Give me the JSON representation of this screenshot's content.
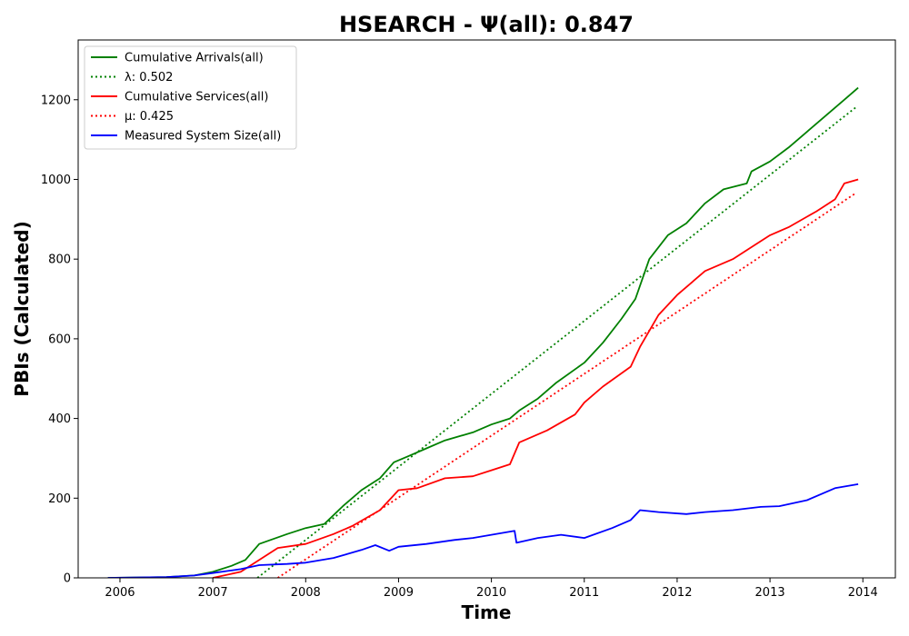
{
  "chart_data": {
    "type": "line",
    "title": "HSEARCH -  Ψ(all): 0.847",
    "xlabel": "Time",
    "ylabel": "PBIs (Calculated)",
    "xlim": [
      2005.55,
      2014.35
    ],
    "ylim": [
      0,
      1350
    ],
    "x_ticks": [
      2006,
      2007,
      2008,
      2009,
      2010,
      2011,
      2012,
      2013,
      2014
    ],
    "y_ticks": [
      0,
      200,
      400,
      600,
      800,
      1000,
      1200
    ],
    "grid": false,
    "legend_position": "upper-left",
    "series": [
      {
        "name": "Cumulative Arrivals(all)",
        "label": "Cumulative Arrivals(all)",
        "color": "#008000",
        "style": "solid",
        "x": [
          2005.87,
          2006.5,
          2006.8,
          2007.0,
          2007.2,
          2007.35,
          2007.5,
          2007.8,
          2008.0,
          2008.2,
          2008.4,
          2008.6,
          2008.8,
          2008.95,
          2009.1,
          2009.3,
          2009.5,
          2009.8,
          2010.0,
          2010.2,
          2010.3,
          2010.5,
          2010.7,
          2011.0,
          2011.2,
          2011.4,
          2011.55,
          2011.7,
          2011.9,
          2012.1,
          2012.3,
          2012.5,
          2012.75,
          2012.8,
          2013.0,
          2013.2,
          2013.4,
          2013.6,
          2013.8,
          2013.95
        ],
        "values": [
          0,
          2,
          6,
          15,
          30,
          45,
          85,
          110,
          125,
          135,
          180,
          220,
          250,
          290,
          305,
          325,
          345,
          365,
          385,
          400,
          420,
          450,
          490,
          540,
          590,
          650,
          700,
          800,
          860,
          890,
          940,
          975,
          990,
          1020,
          1045,
          1080,
          1120,
          1160,
          1200,
          1230
        ]
      },
      {
        "name": "λ: 0.502",
        "label": "λ: 0.502",
        "color": "#008000",
        "style": "dotted",
        "x": [
          2007.48,
          2013.92
        ],
        "values": [
          0,
          1180
        ]
      },
      {
        "name": "Cumulative Services(all)",
        "label": "Cumulative Services(all)",
        "color": "#ff0000",
        "style": "solid",
        "x": [
          2007.0,
          2007.3,
          2007.5,
          2007.7,
          2008.0,
          2008.3,
          2008.5,
          2008.8,
          2009.0,
          2009.2,
          2009.5,
          2009.8,
          2010.0,
          2010.2,
          2010.3,
          2010.6,
          2010.9,
          2011.0,
          2011.2,
          2011.5,
          2011.6,
          2011.8,
          2012.0,
          2012.3,
          2012.6,
          2012.8,
          2013.0,
          2013.2,
          2013.5,
          2013.7,
          2013.8,
          2013.95
        ],
        "values": [
          0,
          15,
          45,
          75,
          85,
          110,
          130,
          170,
          220,
          225,
          250,
          255,
          270,
          285,
          340,
          370,
          410,
          440,
          480,
          530,
          580,
          660,
          710,
          770,
          800,
          830,
          860,
          880,
          920,
          950,
          990,
          1000
        ]
      },
      {
        "name": "μ: 0.425",
        "label": "μ: 0.425",
        "color": "#ff0000",
        "style": "dotted",
        "x": [
          2007.7,
          2013.92
        ],
        "values": [
          0,
          965
        ]
      },
      {
        "name": "Measured System Size(all)",
        "label": "Measured System Size(all)",
        "color": "#0000ff",
        "style": "solid",
        "x": [
          2005.87,
          2006.5,
          2006.8,
          2007.0,
          2007.3,
          2007.5,
          2007.8,
          2008.0,
          2008.3,
          2008.6,
          2008.75,
          2008.9,
          2009.0,
          2009.3,
          2009.6,
          2009.8,
          2010.0,
          2010.25,
          2010.27,
          2010.5,
          2010.75,
          2011.0,
          2011.3,
          2011.5,
          2011.6,
          2011.8,
          2012.1,
          2012.3,
          2012.6,
          2012.9,
          2013.1,
          2013.4,
          2013.7,
          2013.95
        ],
        "values": [
          0,
          2,
          6,
          12,
          22,
          32,
          35,
          38,
          50,
          70,
          82,
          68,
          78,
          85,
          95,
          100,
          108,
          118,
          88,
          100,
          108,
          100,
          125,
          145,
          170,
          165,
          160,
          165,
          170,
          178,
          180,
          195,
          225,
          235
        ]
      }
    ]
  }
}
